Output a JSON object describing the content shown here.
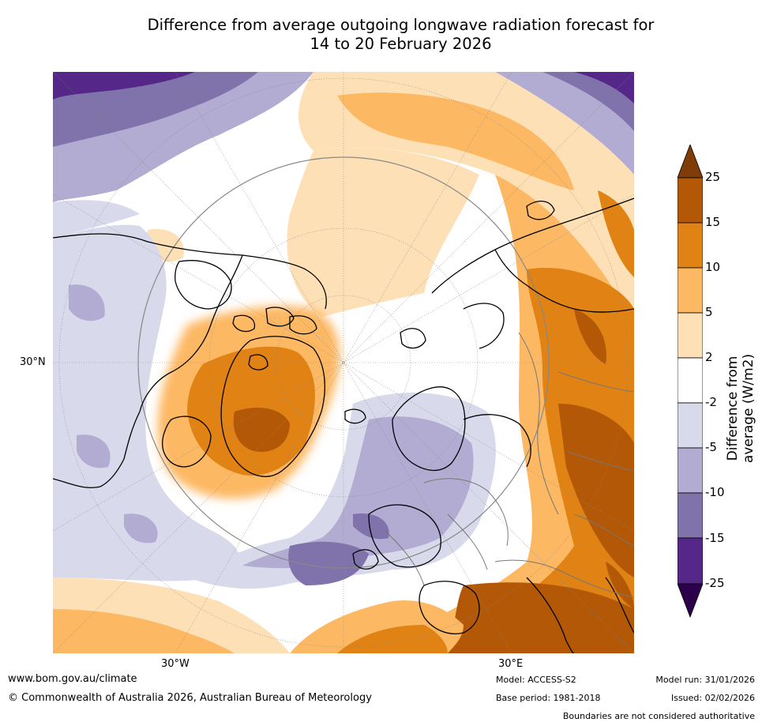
{
  "title": {
    "line1": "Difference from average outgoing longwave radiation forecast for",
    "line2": "14 to 20 February 2026"
  },
  "map": {
    "projection": "north-polar stereographic",
    "labels": {
      "left_lat": "30°N",
      "bottom_left_lon": "30°W",
      "bottom_right_lon": "30°E"
    }
  },
  "legend": {
    "title": "Difference from average (W/m2)",
    "ticks": [
      "25",
      "15",
      "10",
      "5",
      "2",
      "-2",
      "-5",
      "-10",
      "-15",
      "-25"
    ],
    "colors": [
      "#7f3b08",
      "#b35806",
      "#e08214",
      "#fdb863",
      "#fee0b6",
      "#ffffff",
      "#d8daeb",
      "#b2abd2",
      "#8073ac",
      "#542788",
      "#2d004b"
    ]
  },
  "footer": {
    "url": "www.bom.gov.au/climate",
    "copyright": "© Commonwealth of Australia 2026, Australian Bureau of Meteorology",
    "model": "Model: ACCESS-S2",
    "base_period": "Base period: 1981-2018",
    "model_run": "Model run: 31/01/2026",
    "issued": "Issued: 02/02/2026",
    "disclaimer": "Boundaries are not considered authoritative"
  }
}
